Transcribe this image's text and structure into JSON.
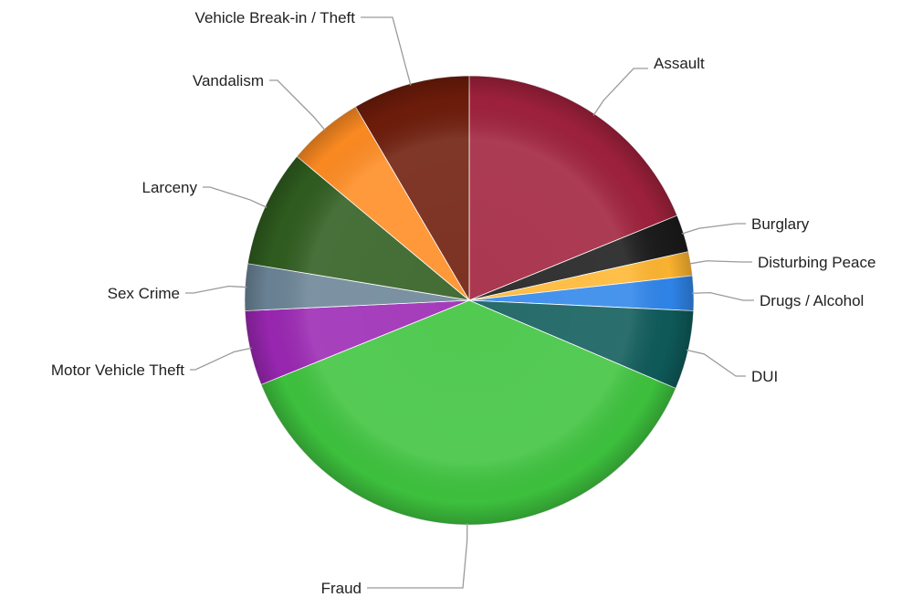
{
  "chart_data": {
    "type": "pie",
    "title": "",
    "start_angle_deg": 0,
    "direction": "clockwise",
    "slices": [
      {
        "label": "Assault",
        "value": 19.6,
        "color": "#a0213c"
      },
      {
        "label": "Burglary",
        "value": 2.8,
        "color": "#1b1b1b"
      },
      {
        "label": "Disturbing Peace",
        "value": 1.8,
        "color": "#ffb630"
      },
      {
        "label": "Drugs / Alcohol",
        "value": 2.6,
        "color": "#2f86eb"
      },
      {
        "label": "DUI",
        "value": 5.9,
        "color": "#0f5b5b"
      },
      {
        "label": "Fraud",
        "value": 39.0,
        "color": "#3ec43e"
      },
      {
        "label": "Motor Vehicle Theft",
        "value": 5.6,
        "color": "#9b27b3"
      },
      {
        "label": "Sex Crime",
        "value": 3.5,
        "color": "#6b8496"
      },
      {
        "label": "Larceny",
        "value": 8.8,
        "color": "#2f5d1f"
      },
      {
        "label": "Vandalism",
        "value": 5.7,
        "color": "#ff8c22"
      },
      {
        "label": "Vehicle Break-in / Theft",
        "value": 8.8,
        "color": "#6e1c0a"
      }
    ]
  }
}
